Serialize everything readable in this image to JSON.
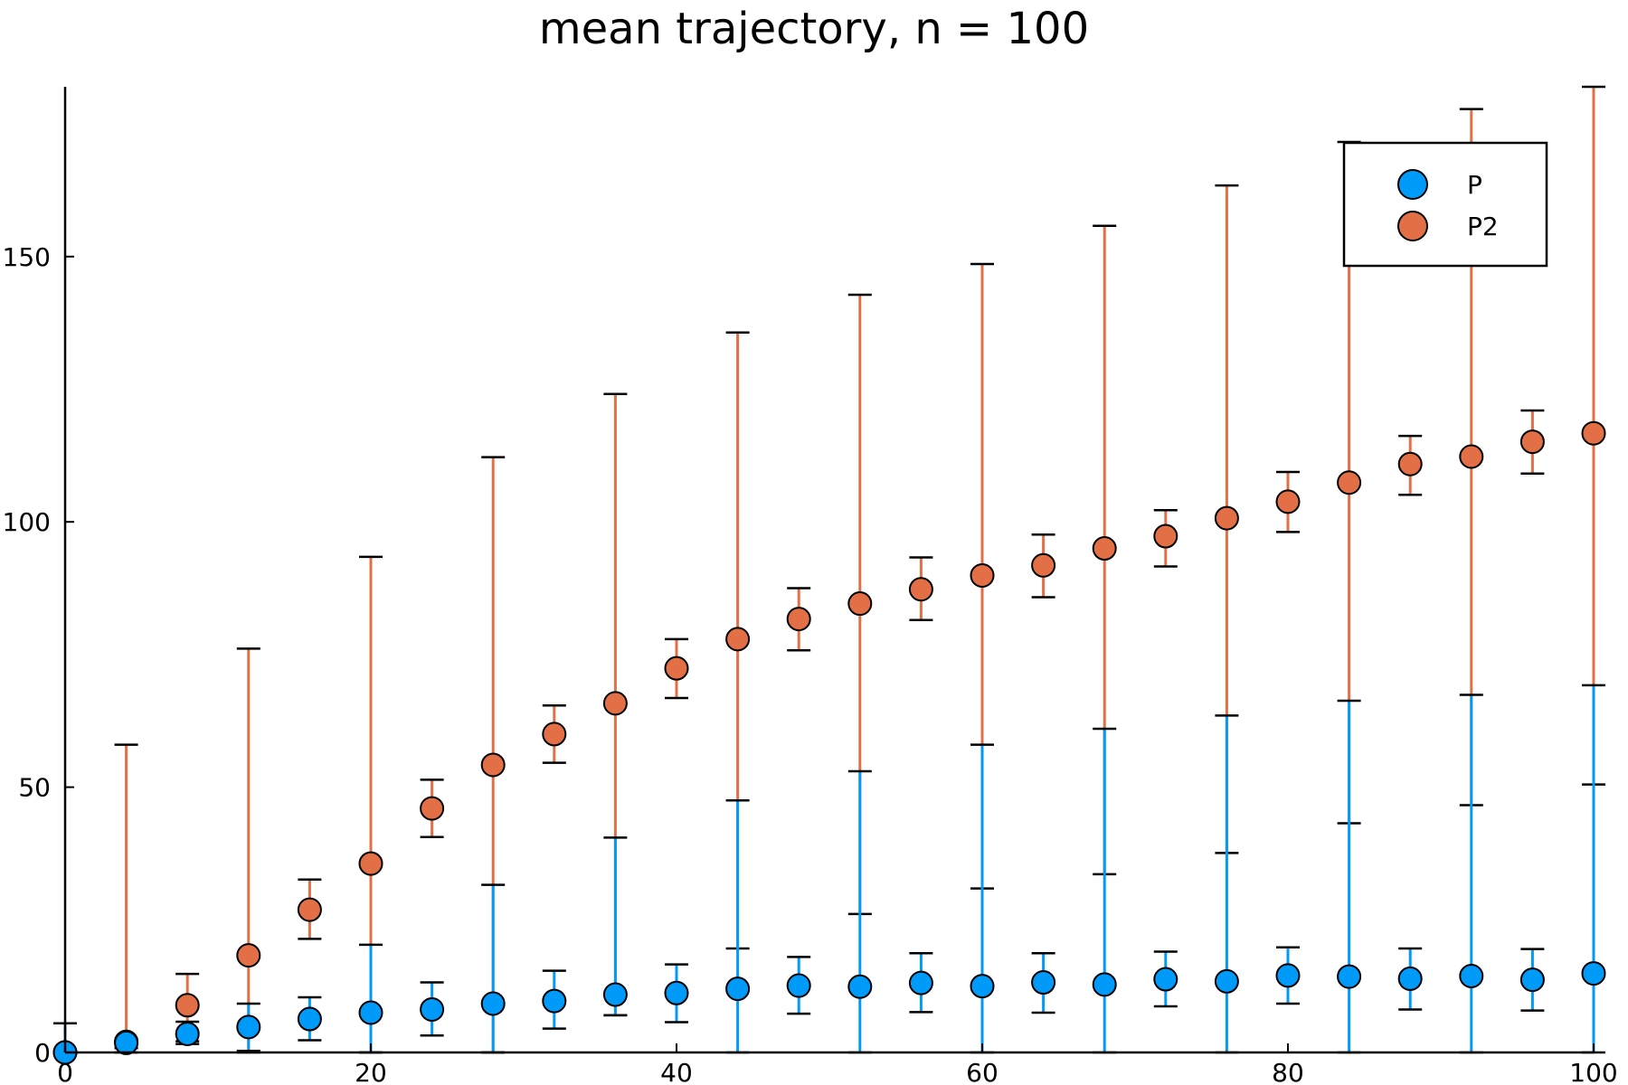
{
  "chart_data": {
    "type": "scatter",
    "title": "mean trajectory, n = 100",
    "xlabel": "",
    "ylabel": "",
    "xlim": [
      0,
      100
    ],
    "ylim": [
      0,
      182
    ],
    "xticks": [
      0,
      20,
      40,
      60,
      80,
      100
    ],
    "yticks": [
      0,
      50,
      100,
      150
    ],
    "xtick_labels": [
      "0",
      "20",
      "40",
      "60",
      "80",
      "100"
    ],
    "ytick_labels": [
      "0",
      "50",
      "100",
      "150"
    ],
    "grid": false,
    "legend_position": "top-right",
    "x": [
      0,
      4,
      8,
      12,
      16,
      20,
      24,
      28,
      32,
      36,
      40,
      44,
      48,
      52,
      56,
      60,
      64,
      68,
      72,
      76,
      80,
      84,
      88,
      92,
      96,
      100
    ],
    "series": [
      {
        "name": "P",
        "color": "#009AF9",
        "values": [
          0,
          1.8,
          3.5,
          4.8,
          6.3,
          7.5,
          8.1,
          9.2,
          9.7,
          10.9,
          11.2,
          12.0,
          12.6,
          12.4,
          13.1,
          12.5,
          13.2,
          12.8,
          13.8,
          13.4,
          14.5,
          14.3,
          13.9,
          14.4,
          13.7,
          14.9
        ],
        "err_lower": [
          0,
          0.8,
          1.6,
          0.3,
          2.3,
          0.0,
          3.2,
          0.0,
          4.5,
          7.0,
          5.7,
          0.0,
          7.3,
          0.0,
          7.6,
          0.0,
          7.5,
          0.0,
          8.7,
          0.0,
          9.2,
          0.0,
          8.1,
          0.0,
          7.9,
          0.0
        ],
        "err_upper": [
          5.5,
          2.6,
          5.8,
          9.2,
          10.4,
          20.3,
          13.2,
          31.6,
          15.4,
          40.5,
          16.6,
          47.5,
          18.0,
          53.0,
          18.7,
          58.0,
          18.7,
          61.0,
          19.0,
          63.5,
          19.8,
          66.3,
          19.6,
          67.4,
          19.5,
          69.2
        ]
      },
      {
        "name": "P2",
        "color": "#E26F46",
        "values": [
          0,
          2.0,
          8.9,
          18.3,
          26.9,
          35.6,
          46.0,
          54.2,
          60.0,
          65.8,
          72.4,
          77.9,
          81.7,
          84.6,
          87.3,
          89.9,
          91.8,
          95.0,
          97.3,
          100.7,
          103.8,
          107.4,
          110.9,
          112.3,
          115.1,
          116.7
        ],
        "err_lower": [
          0,
          0,
          2.1,
          0,
          21.4,
          0,
          40.6,
          0,
          54.6,
          7.0,
          66.8,
          19.6,
          75.8,
          26.1,
          81.5,
          30.9,
          85.8,
          33.6,
          91.6,
          37.6,
          98.1,
          43.2,
          105.1,
          46.6,
          109.1,
          50.5
        ],
        "err_upper": [
          0,
          58.0,
          14.8,
          76.1,
          32.6,
          93.4,
          51.4,
          112.2,
          65.4,
          124.1,
          77.9,
          135.7,
          87.5,
          142.8,
          93.3,
          148.6,
          97.6,
          155.8,
          102.2,
          163.4,
          109.4,
          171.6,
          116.2,
          177.8,
          121.0,
          182
        ]
      }
    ]
  }
}
